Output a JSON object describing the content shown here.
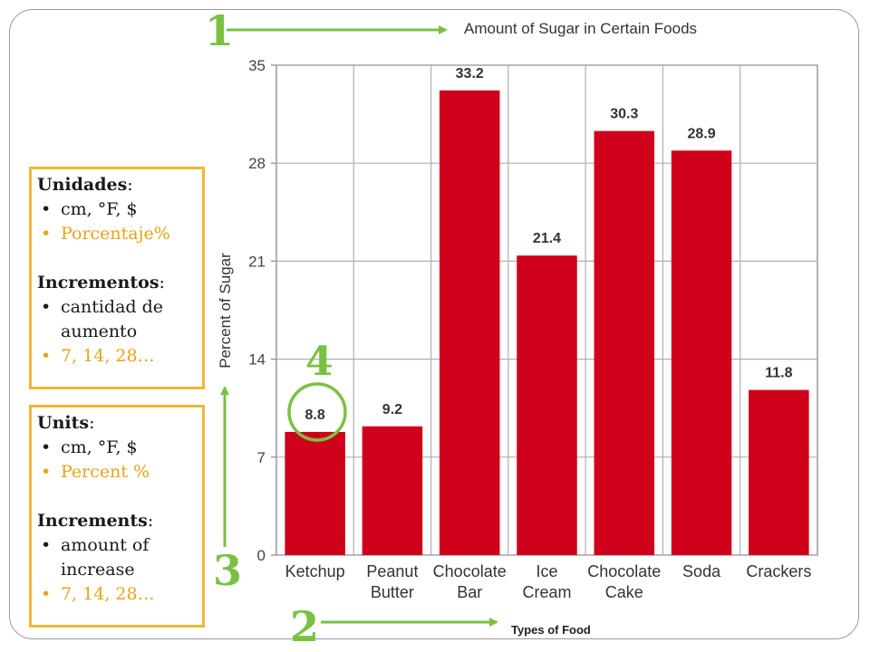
{
  "boxes": {
    "spanish": {
      "units_title": "Unidades",
      "units": [
        "cm, °F, $",
        "Porcentaje%"
      ],
      "inc_title": "Incrementos",
      "inc": [
        "cantidad de aumento",
        "7, 14, 28…"
      ]
    },
    "english": {
      "units_title": "Units",
      "units": [
        "cm, °F, $",
        "Percent %"
      ],
      "inc_title": "Increments",
      "inc": [
        "amount of increase",
        "7, 14, 28…"
      ]
    }
  },
  "annotations": {
    "n1": "1",
    "n2": "2",
    "n3": "3",
    "n4": "4",
    "accent_color": "#7ac143"
  },
  "chart_data": {
    "type": "bar",
    "title": "Amount of Sugar in Certain Foods",
    "xlabel": "Types of Food",
    "ylabel": "Percent of Sugar",
    "categories": [
      [
        "Ketchup"
      ],
      [
        "Peanut",
        "Butter"
      ],
      [
        "Chocolate",
        "Bar"
      ],
      [
        "Ice",
        "Cream"
      ],
      [
        "Chocolate",
        "Cake"
      ],
      [
        "Soda"
      ],
      [
        "Crackers"
      ]
    ],
    "values": [
      8.8,
      9.2,
      33.2,
      21.4,
      30.3,
      28.9,
      11.8
    ],
    "value_labels": [
      "8.8",
      "9.2",
      "33.2",
      "21.4",
      "30.3",
      "28.9",
      "11.8"
    ],
    "ylim": [
      0,
      35
    ],
    "yticks": [
      0,
      7,
      14,
      21,
      28,
      35
    ],
    "grid": true,
    "bar_color": "#d0021b"
  }
}
